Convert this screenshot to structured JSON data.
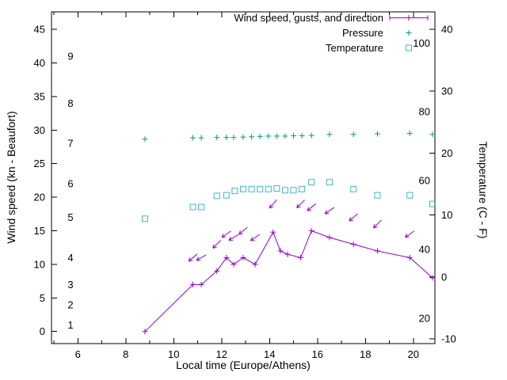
{
  "chart_data": {
    "type": "line",
    "xlabel": "Local time (Europe/Athens)",
    "ylabel_left": "Wind speed (kn - Beaufort)",
    "ylabel_right": "Temperature (C - F)",
    "background_color": "#ffffff",
    "axis_color": "#000000",
    "x_axis": {
      "min": 4.9,
      "max": 20.9,
      "ticks": [
        6,
        8,
        10,
        12,
        14,
        16,
        18,
        20
      ],
      "minor_ticks": [
        5,
        7,
        9,
        11,
        13,
        15,
        17,
        19
      ]
    },
    "y_left_axis": {
      "min": -1.8,
      "max": 47.6,
      "ticks": [
        0,
        5,
        10,
        15,
        20,
        25,
        30,
        35,
        40,
        45
      ],
      "beaufort_scale": [
        {
          "label": "1",
          "kn": 1
        },
        {
          "label": "2",
          "kn": 4
        },
        {
          "label": "3",
          "kn": 7
        },
        {
          "label": "4",
          "kn": 11
        },
        {
          "label": "5",
          "kn": 17
        },
        {
          "label": "6",
          "kn": 22
        },
        {
          "label": "7",
          "kn": 28
        },
        {
          "label": "8",
          "kn": 34
        },
        {
          "label": "9",
          "kn": 41
        }
      ]
    },
    "y_right_axis": {
      "min": -10.75,
      "max": 42.8,
      "ticks": [
        -10,
        0,
        10,
        20,
        30,
        40
      ],
      "fahrenheit_labels": [
        20,
        40,
        60,
        80,
        100
      ]
    },
    "legend": [
      {
        "label": "Wind speed, gusts, and direction",
        "series": "wind_speed"
      },
      {
        "label": "Pressure",
        "series": "pressure"
      },
      {
        "label": "Temperature",
        "series": "temperature"
      }
    ],
    "series": [
      {
        "name": "wind_speed",
        "axis": "left",
        "color": "#9400d3",
        "style": "line-plus",
        "x": [
          8.8,
          10.8,
          11.15,
          11.8,
          12.2,
          12.5,
          12.9,
          13.4,
          14.15,
          14.45,
          14.75,
          15.3,
          15.75,
          16.5,
          17.5,
          18.5,
          19.85,
          20.8
        ],
        "y": [
          0,
          7,
          7,
          9,
          11,
          10,
          11,
          10,
          14.8,
          12,
          11.5,
          11,
          15,
          14,
          13,
          12,
          11,
          8
        ]
      },
      {
        "name": "wind_gusts_direction",
        "axis": "left",
        "color": "#9400d3",
        "style": "arrow",
        "x": [
          10.8,
          11.15,
          11.8,
          12.2,
          12.5,
          12.9,
          13.4,
          14.15,
          15.3,
          15.75,
          16.5,
          17.5,
          18.5,
          19.85
        ],
        "y": [
          11,
          11,
          13,
          14.5,
          14,
          15,
          14,
          19,
          19,
          18.5,
          18,
          17,
          16,
          14.5
        ],
        "dir_deg": [
          140,
          150,
          135,
          145,
          150,
          140,
          145,
          130,
          135,
          140,
          145,
          140,
          135,
          145
        ]
      },
      {
        "name": "pressure",
        "axis": "left",
        "color": "#009e73",
        "style": "plus",
        "x": [
          8.8,
          10.8,
          11.15,
          11.8,
          12.2,
          12.5,
          12.9,
          13.25,
          13.6,
          13.95,
          14.3,
          14.65,
          15.0,
          15.35,
          15.75,
          16.5,
          17.5,
          18.5,
          19.85,
          20.8
        ],
        "y": [
          28.65,
          28.85,
          28.85,
          28.9,
          28.9,
          28.9,
          28.95,
          29.0,
          29.05,
          29.1,
          29.1,
          29.1,
          29.15,
          29.15,
          29.2,
          29.35,
          29.35,
          29.45,
          29.5,
          29.35
        ]
      },
      {
        "name": "temperature",
        "axis": "right",
        "color": "#3fb5d0",
        "style": "open-square",
        "x": [
          8.8,
          10.8,
          11.15,
          11.8,
          12.2,
          12.55,
          12.9,
          13.25,
          13.6,
          13.95,
          14.3,
          14.65,
          15.0,
          15.35,
          15.75,
          16.5,
          17.5,
          18.5,
          19.85,
          20.8
        ],
        "y": [
          9.4,
          11.3,
          11.3,
          13.1,
          13.2,
          13.9,
          14.2,
          14.2,
          14.2,
          14.2,
          14.3,
          14.0,
          14.0,
          14.2,
          15.3,
          15.3,
          14.2,
          13.2,
          13.2,
          11.8
        ]
      }
    ]
  }
}
